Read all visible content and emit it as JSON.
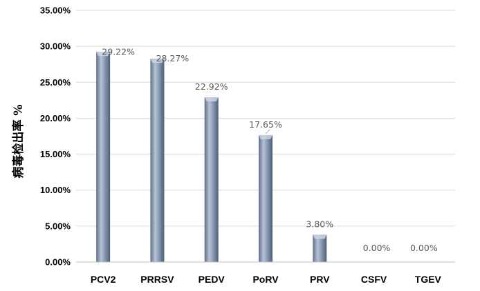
{
  "chart_data": {
    "type": "bar",
    "categories": [
      "PCV2",
      "PRRSV",
      "PEDV",
      "PoRV",
      "PRV",
      "CSFV",
      "TGEV"
    ],
    "values": [
      29.22,
      28.27,
      22.92,
      17.65,
      3.8,
      0.0,
      0.0
    ],
    "data_labels": [
      "29.22%",
      "28.27%",
      "22.92%",
      "17.65%",
      "3.80%",
      "0.00%",
      "0.00%"
    ],
    "ylabel": "病毒检出率 %",
    "xlabel": "",
    "ylim": [
      0,
      35
    ],
    "y_ticks": [
      0,
      5,
      10,
      15,
      20,
      25,
      30,
      35
    ],
    "y_tick_labels": [
      "0.00%",
      "5.00%",
      "10.00%",
      "15.00%",
      "20.00%",
      "25.00%",
      "30.00%",
      "35.00%"
    ],
    "grid": true,
    "legend": "none",
    "bar_color": "#8496b0",
    "bar_highlight": "#c9d3e2",
    "bar_shadow": "#5a6b85"
  }
}
